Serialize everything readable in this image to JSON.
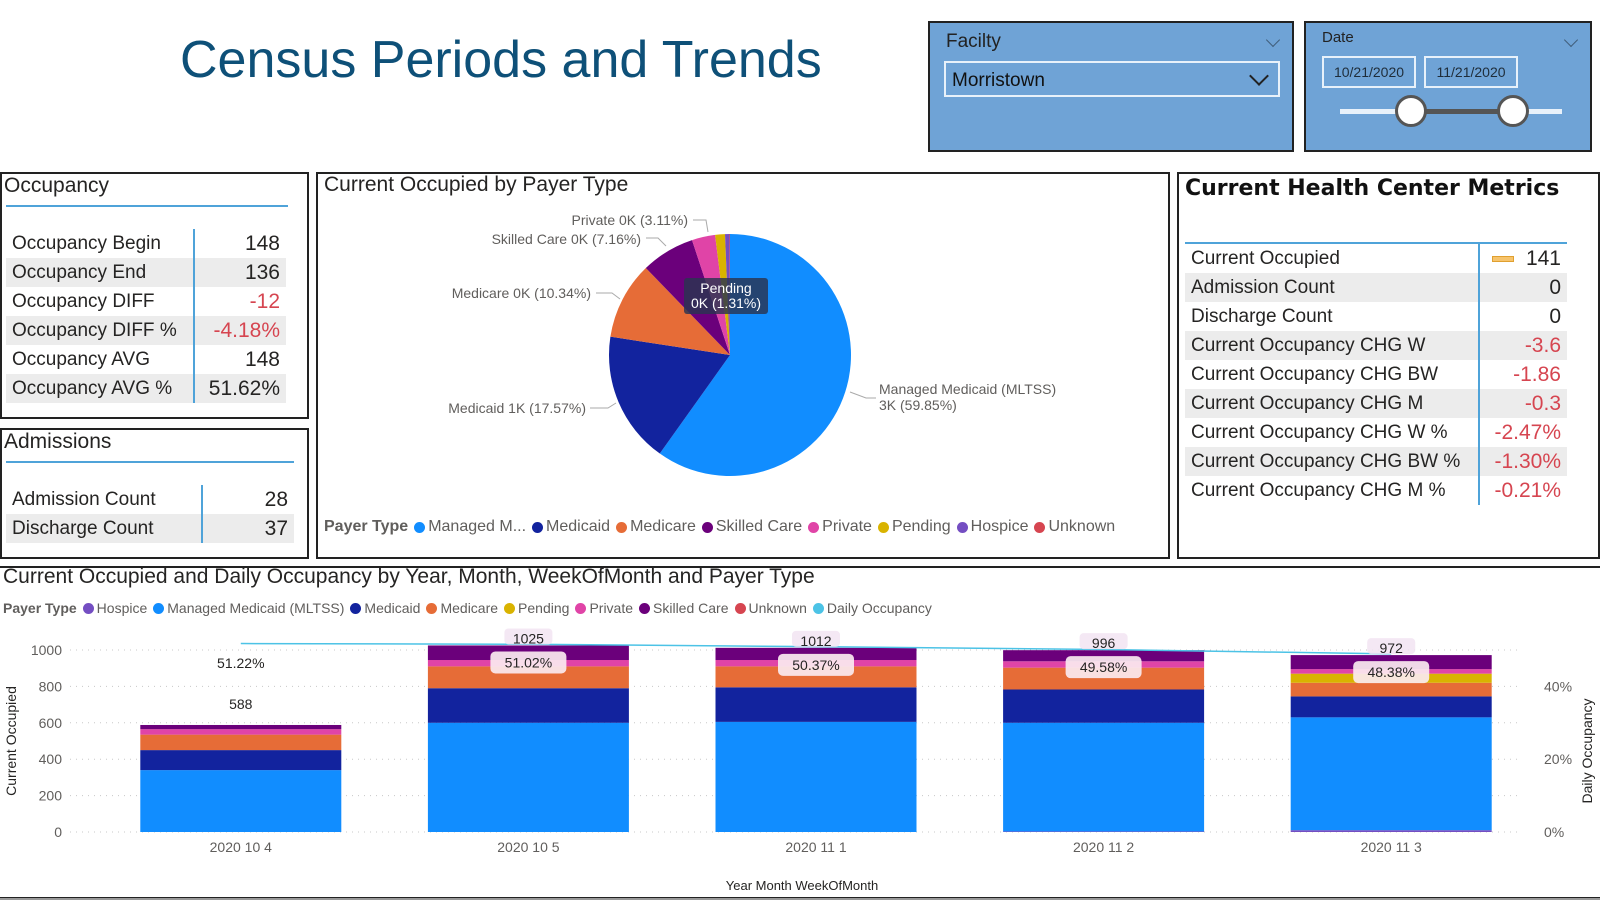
{
  "header": {
    "title": "Census Periods and Trends"
  },
  "facility_slicer": {
    "title": "Facilty",
    "value": "Morristown"
  },
  "date_slicer": {
    "title": "Date",
    "start": "10/21/2020",
    "end": "11/21/2020",
    "range_fraction": [
      0.32,
      0.78
    ]
  },
  "occupancy": {
    "title": "Occupancy",
    "rows": [
      {
        "label": "Occupancy Begin",
        "value": "148",
        "negative": false
      },
      {
        "label": "Occupancy End",
        "value": "136",
        "negative": false
      },
      {
        "label": "Occupancy DIFF",
        "value": "-12",
        "negative": true
      },
      {
        "label": "Occupancy DIFF %",
        "value": "-4.18%",
        "negative": true
      },
      {
        "label": "Occupancy AVG",
        "value": "148",
        "negative": false
      },
      {
        "label": "Occupancy AVG %",
        "value": "51.62%",
        "negative": false
      }
    ]
  },
  "admissions": {
    "title": "Admissions",
    "rows": [
      {
        "label": "Admission Count",
        "value": "28",
        "negative": false
      },
      {
        "label": "Discharge Count",
        "value": "37",
        "negative": false
      }
    ]
  },
  "metrics": {
    "title": "Current Health Center Metrics",
    "rows": [
      {
        "label": "Current Occupied",
        "value": "141",
        "negative": false,
        "indicator": true
      },
      {
        "label": "Admission Count",
        "value": "0",
        "negative": false
      },
      {
        "label": "Discharge Count",
        "value": "0",
        "negative": false
      },
      {
        "label": "Current Occupancy CHG W",
        "value": "-3.6",
        "negative": true
      },
      {
        "label": "Current Occupancy CHG BW",
        "value": "-1.86",
        "negative": true
      },
      {
        "label": "Current Occupancy CHG M",
        "value": "-0.3",
        "negative": true
      },
      {
        "label": "Current Occupancy CHG W %",
        "value": "-2.47%",
        "negative": true
      },
      {
        "label": "Current Occupancy CHG BW %",
        "value": "-1.30%",
        "negative": true
      },
      {
        "label": "Current Occupancy CHG M %",
        "value": "-0.21%",
        "negative": true
      }
    ],
    "indicator_color": "#f7c46c"
  },
  "colors": {
    "Managed Medicaid (MLTSS)": "#118dff",
    "Medicaid": "#12239e",
    "Medicare": "#e66c37",
    "Skilled Care": "#6b007b",
    "Private": "#e044a7",
    "Pending": "#d9b300",
    "Hospice": "#744ec2",
    "Unknown": "#d64550",
    "Daily Occupancy": "#4cc3e6"
  },
  "chart_data": [
    {
      "type": "pie",
      "title": "Current Occupied by Payer Type",
      "legend_title": "Payer Type",
      "legend": [
        "Managed M...",
        "Medicaid",
        "Medicare",
        "Skilled Care",
        "Private",
        "Pending",
        "Hospice",
        "Unknown"
      ],
      "slices": [
        {
          "name": "Managed Medicaid (MLTSS)",
          "label_line1": "Managed Medicaid (MLTSS)",
          "label_line2": "3K (59.85%)",
          "percent": 59.85
        },
        {
          "name": "Medicaid",
          "label_line1": "Medicaid 1K (17.57%)",
          "percent": 17.57
        },
        {
          "name": "Medicare",
          "label_line1": "Medicare 0K (10.34%)",
          "percent": 10.34
        },
        {
          "name": "Skilled Care",
          "label_line1": "Skilled Care 0K (7.16%)",
          "percent": 7.16
        },
        {
          "name": "Private",
          "label_line1": "Private 0K (3.11%)",
          "percent": 3.11
        },
        {
          "name": "Pending",
          "label_line1": "Pending",
          "label_line2": "0K (1.31%)",
          "percent": 1.31
        },
        {
          "name": "Hospice",
          "percent": 0.6
        },
        {
          "name": "Unknown",
          "percent": 0.06
        }
      ]
    },
    {
      "type": "bar",
      "subtype": "stacked-bar-with-line",
      "title": "Current Occupied and Daily Occupancy by Year, Month, WeekOfMonth and Payer Type",
      "legend_title": "Payer Type",
      "legend": [
        "Hospice",
        "Managed Medicaid (MLTSS)",
        "Medicaid",
        "Medicare",
        "Pending",
        "Private",
        "Skilled Care",
        "Unknown",
        "Daily Occupancy"
      ],
      "xlabel": "Year Month WeekOfMonth",
      "ylabel": "Current Occupied",
      "y2label": "Daily Occupancy",
      "categories": [
        "2020 10 4",
        "2020 10 5",
        "2020 11 1",
        "2020 11 2",
        "2020 11 3"
      ],
      "ylim": [
        0,
        1000
      ],
      "yticks": [
        "0",
        "200",
        "400",
        "600",
        "800",
        "1000"
      ],
      "y2ticks": [
        "0%",
        "20%",
        "40%"
      ],
      "y2lim": [
        0,
        50
      ],
      "totals": [
        "588",
        "1025",
        "1012",
        "996",
        "972"
      ],
      "series": [
        {
          "name": "Hospice",
          "values": [
            0,
            0,
            0,
            3,
            10
          ]
        },
        {
          "name": "Managed Medicaid (MLTSS)",
          "values": [
            340,
            600,
            605,
            597,
            620
          ]
        },
        {
          "name": "Medicaid",
          "values": [
            110,
            190,
            190,
            183,
            115
          ]
        },
        {
          "name": "Medicare",
          "values": [
            85,
            120,
            115,
            120,
            75
          ]
        },
        {
          "name": "Pending",
          "values": [
            0,
            0,
            0,
            0,
            50
          ]
        },
        {
          "name": "Private",
          "values": [
            30,
            35,
            35,
            35,
            25
          ]
        },
        {
          "name": "Skilled Care",
          "values": [
            23,
            80,
            67,
            61,
            77
          ]
        },
        {
          "name": "Unknown",
          "values": [
            0,
            0,
            0,
            0,
            0
          ]
        }
      ],
      "line": {
        "name": "Daily Occupancy",
        "values": [
          51.22,
          51.02,
          50.37,
          49.58,
          48.38
        ],
        "labels": [
          "51.22%",
          "51.02%",
          "50.37%",
          "49.58%",
          "48.38%"
        ]
      }
    }
  ]
}
